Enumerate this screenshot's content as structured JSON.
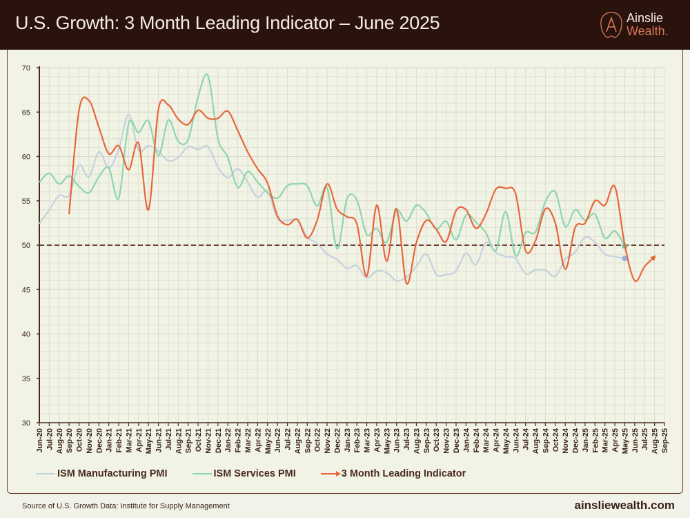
{
  "header": {
    "title": "U.S. Growth: 3 Month Leading Indicator – June 2025"
  },
  "logo": {
    "line1": "Ainslie",
    "line2": "Wealth."
  },
  "footer": {
    "source": "Source of U.S. Growth Data: Institute for Supply Management",
    "website": "ainsliewealth.com"
  },
  "colors": {
    "manufacturing": "#c3d2dd",
    "services": "#8ed5b0",
    "leading": "#e8653b",
    "reference": "#5a2a1e",
    "header_bg": "#2a130d"
  },
  "chart_data": {
    "type": "line",
    "title": "U.S. Growth: 3 Month Leading Indicator – June 2025",
    "ylim": [
      30,
      70
    ],
    "yticks": [
      "30",
      "35",
      "40",
      "45",
      "50",
      "55",
      "60",
      "65",
      "70"
    ],
    "grid": true,
    "legend_position": "bottom",
    "reference_line": {
      "value": 50,
      "style": "dashed"
    },
    "categories": [
      "Jun-20",
      "Jul-20",
      "Aug-20",
      "Sep-20",
      "Oct-20",
      "Nov-20",
      "Dec-20",
      "Jan-21",
      "Feb-21",
      "Mar-21",
      "Apr-21",
      "May-21",
      "Jun-21",
      "Jul-21",
      "Aug-21",
      "Sep-21",
      "Oct-21",
      "Nov-21",
      "Dec-21",
      "Jan-22",
      "Feb-22",
      "Mar-22",
      "Apr-22",
      "May-22",
      "Jun-22",
      "Jul-22",
      "Aug-22",
      "Sep-22",
      "Oct-22",
      "Nov-22",
      "Dec-22",
      "Jan-23",
      "Feb-23",
      "Mar-23",
      "Apr-23",
      "May-23",
      "Jun-23",
      "Jul-23",
      "Aug-23",
      "Sep-23",
      "Oct-23",
      "Nov-23",
      "Dec-23",
      "Jan-24",
      "Feb-24",
      "Mar-24",
      "Apr-24",
      "May-24",
      "Jun-24",
      "Jul-24",
      "Aug-24",
      "Sep-24",
      "Oct-24",
      "Nov-24",
      "Dec-24",
      "Jan-25",
      "Feb-25",
      "Mar-25",
      "Apr-25",
      "May-25",
      "Jun-25",
      "Jul-25",
      "Aug-25",
      "Sep-25"
    ],
    "series": [
      {
        "name": "ISM Manufacturing PMI",
        "color": "#c3d2dd",
        "values": [
          52.4,
          54,
          55.6,
          55.6,
          59,
          57.7,
          60.5,
          58.7,
          60.8,
          64.7,
          60.7,
          61.2,
          60.6,
          59.5,
          59.9,
          61.1,
          60.8,
          61.1,
          58.8,
          57.6,
          58.6,
          57.1,
          55.4,
          56.1,
          53,
          52.8,
          52.8,
          50.9,
          50.2,
          49,
          48.4,
          47.4,
          47.7,
          46.3,
          47.1,
          46.9,
          46,
          46.4,
          47.6,
          49,
          46.7,
          46.7,
          47.1,
          49.1,
          47.8,
          50.3,
          49.2,
          48.7,
          48.5,
          46.8,
          47.2,
          47.2,
          46.5,
          48.4,
          49.2,
          50.9,
          50.3,
          49,
          48.7,
          48.5,
          null,
          null,
          null,
          null
        ]
      },
      {
        "name": "ISM Services PMI",
        "color": "#8ed5b0",
        "values": [
          57.1,
          58.1,
          56.9,
          57.8,
          56.6,
          55.9,
          57.7,
          58.7,
          55.3,
          63.7,
          62.7,
          64,
          60.1,
          64.1,
          61.7,
          61.9,
          66.7,
          69.1,
          62,
          59.9,
          56.5,
          58.3,
          57.1,
          55.9,
          55.3,
          56.7,
          56.9,
          56.7,
          54.4,
          56.5,
          49.6,
          55.2,
          55.1,
          51.2,
          51.9,
          50.3,
          53.9,
          52.7,
          54.5,
          53.6,
          51.8,
          52.7,
          50.6,
          53.4,
          52.6,
          51.4,
          49.4,
          53.8,
          48.8,
          51.4,
          51.5,
          54.9,
          56,
          52.1,
          54,
          52.8,
          53.5,
          50.8,
          51.6,
          49.9,
          null,
          null,
          null,
          null
        ]
      },
      {
        "name": "3 Month Leading Indicator",
        "color": "#e8653b",
        "values": [
          null,
          null,
          null,
          53.5,
          65.2,
          66.3,
          63.3,
          60.3,
          61.2,
          58.5,
          61.5,
          54,
          65.3,
          65.8,
          64.2,
          63.6,
          65.2,
          64.3,
          64.3,
          65.1,
          62.9,
          60.5,
          58.6,
          57,
          53.3,
          52.3,
          52.9,
          50.8,
          52.8,
          56.9,
          54.1,
          53.2,
          52.4,
          46.5,
          54.5,
          48.2,
          54.1,
          45.7,
          50.3,
          52.8,
          51.8,
          50.4,
          53.9,
          54,
          51.9,
          53.5,
          56.3,
          56.4,
          55.8,
          49.4,
          50.5,
          54.1,
          52.5,
          47.3,
          52,
          52.5,
          55,
          54.5,
          56.6,
          50,
          46,
          47.6,
          48.7,
          null
        ]
      }
    ]
  }
}
